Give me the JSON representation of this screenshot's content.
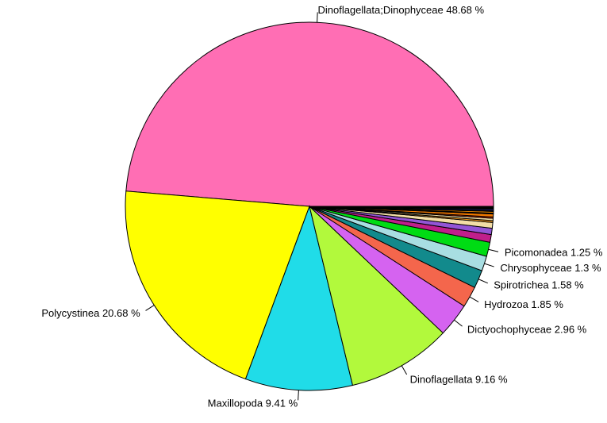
{
  "background_color": "#FFFFFF",
  "unit_suffix": "%",
  "chart_data": {
    "type": "pie",
    "title": "",
    "direction": "counterclockwise",
    "start_angle_deg": 0,
    "legend_position": "none",
    "label_style": "radial ticks with name and percent",
    "slices": [
      {
        "name": "Dinoflagellata;Dinophyceae",
        "pct": 48.68,
        "color": "#FF6EB4",
        "labeled": true
      },
      {
        "name": "Polycystinea",
        "pct": 20.68,
        "color": "#FFFF00",
        "labeled": true
      },
      {
        "name": "Maxillopoda",
        "pct": 9.41,
        "color": "#20DCE8",
        "labeled": true
      },
      {
        "name": "Dinoflagellata",
        "pct": 9.16,
        "color": "#B2F93C",
        "labeled": true
      },
      {
        "name": "Dictyochophyceae",
        "pct": 2.96,
        "color": "#D563F0",
        "labeled": true
      },
      {
        "name": "Hydrozoa",
        "pct": 1.85,
        "color": "#F4664C",
        "labeled": true
      },
      {
        "name": "Spirotrichea",
        "pct": 1.58,
        "color": "#128A8C",
        "labeled": true
      },
      {
        "name": "Chrysophyceae",
        "pct": 1.3,
        "color": "#A8DEE2",
        "labeled": true
      },
      {
        "name": "Picomonadea",
        "pct": 1.25,
        "color": "#00DC14",
        "labeled": true
      },
      {
        "name": "",
        "pct": 0.68,
        "color": "#C01F8B",
        "labeled": false
      },
      {
        "name": "",
        "pct": 0.55,
        "color": "#9355D6",
        "labeled": false
      },
      {
        "name": "",
        "pct": 0.5,
        "color": "#F2DDA6",
        "labeled": false
      },
      {
        "name": "",
        "pct": 0.16,
        "color": "#FFA01E",
        "labeled": false
      },
      {
        "name": "",
        "pct": 0.2,
        "color": "#F2DDA6",
        "labeled": false
      },
      {
        "name": "",
        "pct": 0.12,
        "color": "#E83010",
        "labeled": false
      },
      {
        "name": "",
        "pct": 0.26,
        "color": "#F07800",
        "labeled": false
      },
      {
        "name": "",
        "pct": 0.08,
        "color": "#1A1A1A",
        "labeled": false
      },
      {
        "name": "",
        "pct": 0.14,
        "color": "#FF9000",
        "labeled": false
      },
      {
        "name": "",
        "pct": 0.07,
        "color": "#151515",
        "labeled": false
      },
      {
        "name": "",
        "pct": 0.13,
        "color": "#23238C",
        "labeled": false
      },
      {
        "name": "",
        "pct": 0.24,
        "color": "#000000",
        "labeled": false
      }
    ]
  }
}
